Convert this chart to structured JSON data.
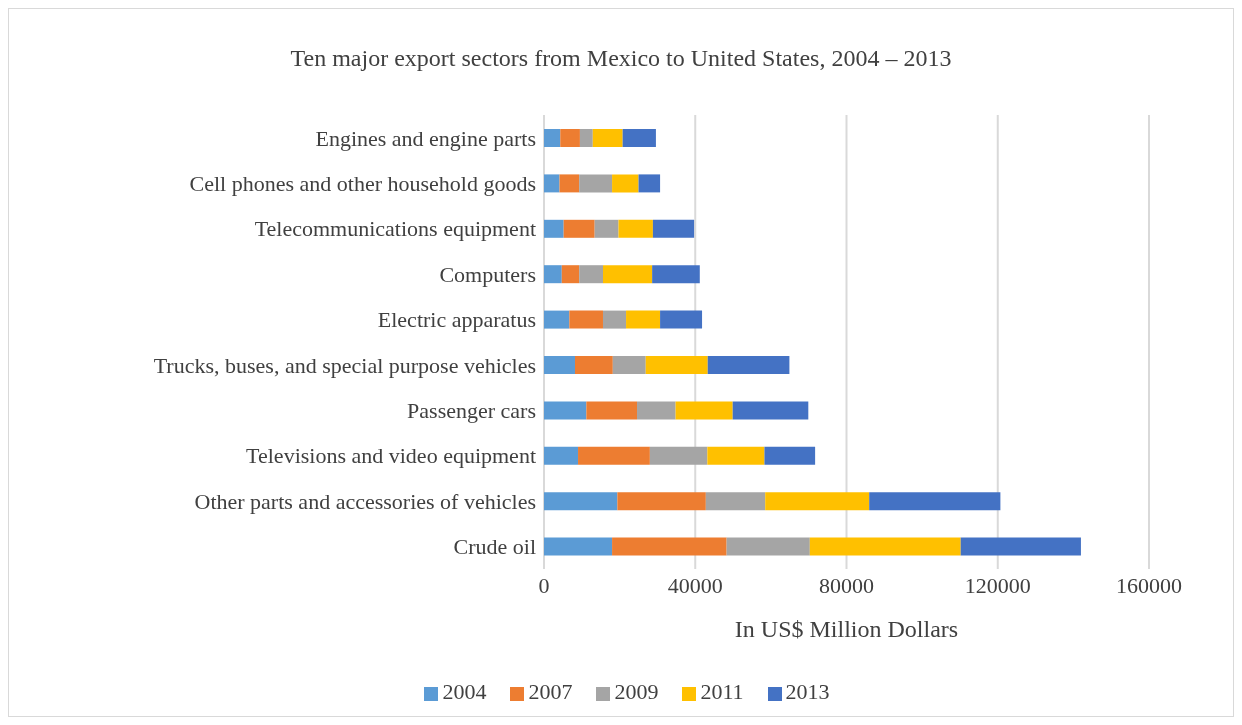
{
  "chart_data": {
    "type": "bar",
    "orientation": "horizontal",
    "stacked": true,
    "title": "Ten major export sectors from Mexico to United States, 2004 – 2013",
    "xlabel": "In US$ Million Dollars",
    "categories": [
      "Engines and engine parts",
      "Cell phones and other household goods",
      "Telecommunications equipment",
      "Computers",
      "Electric apparatus",
      "Trucks, buses, and special purpose vehicles",
      "Passenger cars",
      "Televisions and video equipment",
      "Other parts and accessories of vehicles",
      "Crude oil"
    ],
    "series": [
      {
        "name": "2004",
        "color": "#5b9bd5",
        "values": [
          4300,
          4100,
          5200,
          4700,
          6700,
          8200,
          11200,
          9000,
          19400,
          18000
        ]
      },
      {
        "name": "2007",
        "color": "#ed7d31",
        "values": [
          5200,
          5200,
          8200,
          4600,
          8900,
          10000,
          13400,
          19000,
          23400,
          30300
        ]
      },
      {
        "name": "2009",
        "color": "#a5a5a5",
        "values": [
          3400,
          8700,
          6300,
          6300,
          6100,
          8700,
          10200,
          15200,
          15700,
          22000
        ]
      },
      {
        "name": "2011",
        "color": "#ffc000",
        "values": [
          7900,
          7000,
          9100,
          13000,
          9000,
          16400,
          15100,
          15100,
          27500,
          39900
        ]
      },
      {
        "name": "2013",
        "color": "#4472c4",
        "values": [
          8800,
          5700,
          10900,
          12600,
          11100,
          21600,
          20000,
          13400,
          34700,
          31800
        ]
      }
    ],
    "xlim": [
      0,
      160000
    ],
    "xticks": [
      0,
      40000,
      80000,
      120000,
      160000
    ],
    "grid": "x",
    "legend": "bottom"
  }
}
